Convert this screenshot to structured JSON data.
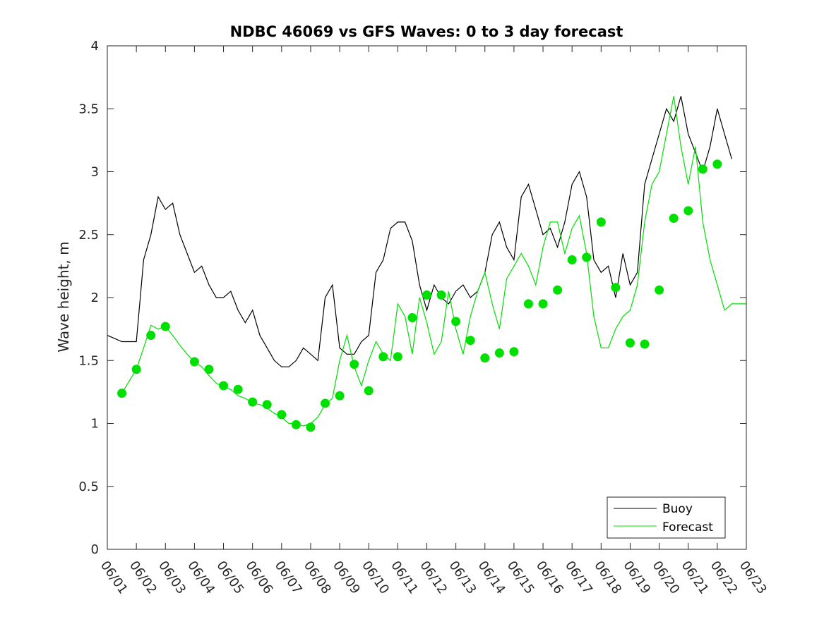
{
  "chart_data": {
    "type": "line",
    "title": "NDBC 46069 vs GFS Waves: 0 to 3 day forecast",
    "xlabel": "",
    "ylabel": "Wave height, m",
    "ylim": [
      0,
      4
    ],
    "yticks": [
      "0",
      "0.5",
      "1",
      "1.5",
      "2",
      "2.5",
      "3",
      "3.5",
      "4"
    ],
    "xlim_days": [
      0,
      22
    ],
    "xticks": [
      "06/01",
      "06/02",
      "06/03",
      "06/04",
      "06/05",
      "06/06",
      "06/07",
      "06/08",
      "06/09",
      "06/10",
      "06/11",
      "06/12",
      "06/13",
      "06/14",
      "06/15",
      "06/16",
      "06/17",
      "06/18",
      "06/19",
      "06/20",
      "06/21",
      "06/22",
      "06/23"
    ],
    "grid": false,
    "legend_position": "bottom-right",
    "series": [
      {
        "name": "Buoy",
        "color": "#000000",
        "x": [
          0,
          0.5,
          1,
          1.25,
          1.5,
          1.75,
          2,
          2.25,
          2.5,
          2.75,
          3,
          3.25,
          3.5,
          3.75,
          4,
          4.25,
          4.5,
          4.75,
          5,
          5.25,
          5.5,
          5.75,
          6,
          6.25,
          6.5,
          6.75,
          7,
          7.25,
          7.5,
          7.75,
          8,
          8.25,
          8.5,
          8.75,
          9,
          9.25,
          9.5,
          9.75,
          10,
          10.25,
          10.5,
          10.75,
          11,
          11.25,
          11.5,
          11.75,
          12,
          12.25,
          12.5,
          12.75,
          13,
          13.25,
          13.5,
          13.75,
          14,
          14.25,
          14.5,
          14.75,
          15,
          15.25,
          15.5,
          15.75,
          16,
          16.25,
          16.5,
          16.75,
          17,
          17.25,
          17.5,
          17.75,
          18,
          18.25,
          18.5,
          18.75,
          19,
          19.25,
          19.5,
          19.75,
          20,
          20.25,
          20.5,
          20.75,
          21,
          21.25,
          21.5
        ],
        "values": [
          1.7,
          1.65,
          1.65,
          2.3,
          2.5,
          2.8,
          2.7,
          2.75,
          2.5,
          2.35,
          2.2,
          2.25,
          2.1,
          2.0,
          2.0,
          2.05,
          1.9,
          1.8,
          1.9,
          1.7,
          1.6,
          1.5,
          1.45,
          1.45,
          1.5,
          1.6,
          1.55,
          1.5,
          2.0,
          2.1,
          1.6,
          1.55,
          1.55,
          1.65,
          1.7,
          2.2,
          2.3,
          2.55,
          2.6,
          2.6,
          2.45,
          2.1,
          1.9,
          2.1,
          2.0,
          1.95,
          2.05,
          2.1,
          2.0,
          2.05,
          2.2,
          2.5,
          2.6,
          2.4,
          2.3,
          2.8,
          2.9,
          2.7,
          2.5,
          2.55,
          2.4,
          2.6,
          2.9,
          3.0,
          2.8,
          2.3,
          2.2,
          2.25,
          2.0,
          2.35,
          2.1,
          2.2,
          2.9,
          3.1,
          3.3,
          3.5,
          3.4,
          3.6,
          3.3,
          3.15,
          3.0,
          3.2,
          3.5,
          3.3,
          3.1
        ]
      },
      {
        "name": "Forecast",
        "color": "#00e000",
        "x": [
          0.5,
          1,
          1.25,
          1.5,
          1.75,
          2,
          2.25,
          2.5,
          2.75,
          3,
          3.25,
          3.5,
          3.75,
          4,
          4.25,
          4.5,
          4.75,
          5,
          5.25,
          5.5,
          5.75,
          6,
          6.25,
          6.5,
          6.75,
          7,
          7.25,
          7.5,
          7.75,
          8,
          8.25,
          8.5,
          8.75,
          9,
          9.25,
          9.5,
          9.75,
          10,
          10.25,
          10.5,
          10.75,
          11,
          11.25,
          11.5,
          11.75,
          12,
          12.25,
          12.5,
          12.75,
          13,
          13.25,
          13.5,
          13.75,
          14,
          14.25,
          14.5,
          14.75,
          15,
          15.25,
          15.5,
          15.75,
          16,
          16.25,
          16.5,
          16.75,
          17,
          17.25,
          17.5,
          17.75,
          18,
          18.25,
          18.5,
          18.75,
          19,
          19.25,
          19.5,
          19.75,
          20,
          20.25,
          20.5,
          20.75,
          21,
          21.25,
          21.5,
          21.75,
          22
        ],
        "values": [
          1.24,
          1.43,
          1.6,
          1.78,
          1.75,
          1.77,
          1.7,
          1.62,
          1.55,
          1.49,
          1.45,
          1.38,
          1.32,
          1.29,
          1.27,
          1.22,
          1.2,
          1.16,
          1.15,
          1.12,
          1.08,
          1.05,
          1.0,
          1.0,
          0.98,
          1.0,
          1.05,
          1.15,
          1.2,
          1.5,
          1.7,
          1.45,
          1.3,
          1.5,
          1.65,
          1.55,
          1.5,
          1.95,
          1.85,
          1.55,
          2.0,
          1.8,
          1.55,
          1.65,
          2.05,
          1.75,
          1.55,
          1.85,
          2.05,
          2.2,
          1.95,
          1.75,
          2.15,
          2.25,
          2.35,
          2.25,
          2.1,
          2.4,
          2.6,
          2.6,
          2.35,
          2.55,
          2.65,
          2.35,
          1.85,
          1.6,
          1.6,
          1.75,
          1.85,
          1.9,
          2.1,
          2.6,
          2.9,
          3.0,
          3.3,
          3.6,
          3.2,
          2.9,
          3.2,
          2.6,
          2.3,
          2.1,
          1.9,
          1.95,
          1.95,
          1.95
        ]
      },
      {
        "name": "",
        "marker": "circle",
        "color": "#00e000",
        "x": [
          0.5,
          1,
          1.5,
          2,
          3,
          3.5,
          4,
          4.5,
          5,
          5.5,
          6,
          6.5,
          7,
          7.5,
          8,
          8.5,
          9,
          9.5,
          10,
          10.5,
          11,
          11.5,
          12,
          12.5,
          13,
          13.5,
          14,
          14.5,
          15,
          15.5,
          16,
          16.5,
          17,
          17.5,
          18,
          18.5,
          19,
          19.5,
          20,
          20.5,
          21
        ],
        "values": [
          1.24,
          1.43,
          1.7,
          1.77,
          1.49,
          1.43,
          1.3,
          1.27,
          1.17,
          1.15,
          1.07,
          0.99,
          0.97,
          1.16,
          1.22,
          1.47,
          1.26,
          1.53,
          1.53,
          1.84,
          2.02,
          2.02,
          1.81,
          1.66,
          1.52,
          1.56,
          1.57,
          1.95,
          1.95,
          2.06,
          2.3,
          2.32,
          2.6,
          2.08,
          1.64,
          1.63,
          2.06,
          2.63,
          2.69,
          3.02,
          3.06
        ]
      }
    ]
  }
}
